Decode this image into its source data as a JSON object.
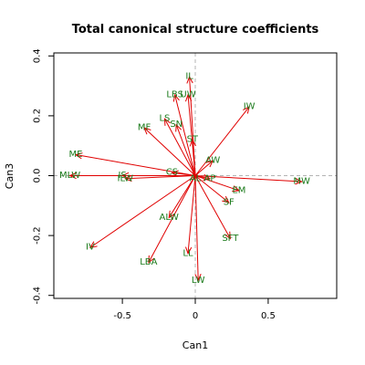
{
  "chart_data": {
    "type": "scatter",
    "subtype": "biplot-vectors",
    "title": "Total canonical structure coefficients",
    "xlabel": "Can1",
    "ylabel": "Can3",
    "xlim": [
      -0.97,
      0.97
    ],
    "ylim": [
      -0.41,
      0.41
    ],
    "xticks": [
      -0.5,
      0.0,
      0.5
    ],
    "yticks": [
      -0.4,
      -0.2,
      0.0,
      0.2,
      0.4
    ],
    "grid": false,
    "reference_lines": {
      "x": 0,
      "y": 0,
      "style": "dashed",
      "color": "#b4b4b4"
    },
    "colors": {
      "arrow": "#e00000",
      "label": "#1a7a1a",
      "axis": "#000000"
    },
    "vectors": [
      {
        "label": "IL",
        "x": -0.04,
        "y": 0.33
      },
      {
        "label": "LBS",
        "x": -0.14,
        "y": 0.27
      },
      {
        "label": "UW",
        "x": -0.05,
        "y": 0.27
      },
      {
        "label": "IW",
        "x": 0.37,
        "y": 0.23
      },
      {
        "label": "LS",
        "x": -0.21,
        "y": 0.19
      },
      {
        "label": "SN",
        "x": -0.13,
        "y": 0.17
      },
      {
        "label": "MF",
        "x": -0.35,
        "y": 0.16
      },
      {
        "label": "ST",
        "x": -0.02,
        "y": 0.12
      },
      {
        "label": "ME",
        "x": -0.82,
        "y": 0.07
      },
      {
        "label": "AW",
        "x": 0.12,
        "y": 0.05
      },
      {
        "label": "MLW",
        "x": -0.86,
        "y": 0.0
      },
      {
        "label": "IS",
        "x": -0.5,
        "y": 0.0
      },
      {
        "label": "ILW",
        "x": -0.48,
        "y": -0.01
      },
      {
        "label": "CS",
        "x": -0.16,
        "y": 0.01
      },
      {
        "label": "AL",
        "x": 0.0,
        "y": -0.01
      },
      {
        "label": "AP",
        "x": 0.1,
        "y": -0.01
      },
      {
        "label": "MW",
        "x": 0.73,
        "y": -0.02
      },
      {
        "label": "EM",
        "x": 0.3,
        "y": -0.05
      },
      {
        "label": "SF",
        "x": 0.23,
        "y": -0.09
      },
      {
        "label": "ALW",
        "x": -0.18,
        "y": -0.14
      },
      {
        "label": "IV",
        "x": -0.72,
        "y": -0.24
      },
      {
        "label": "SFT",
        "x": 0.24,
        "y": -0.21
      },
      {
        "label": "LL",
        "x": -0.05,
        "y": -0.26
      },
      {
        "label": "LBA",
        "x": -0.32,
        "y": -0.29
      },
      {
        "label": "LW",
        "x": 0.02,
        "y": -0.35
      }
    ]
  }
}
